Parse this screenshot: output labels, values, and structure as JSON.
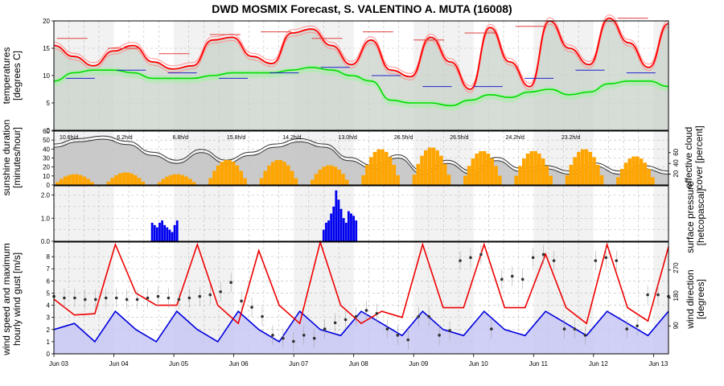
{
  "title": "DWD MOSMIX Forecast, S. VALENTINO A. MUTA (16008)",
  "x_ticks": [
    "Jun 03",
    "Jun 04",
    "Jun 05",
    "Jun 06",
    "Jun 07",
    "Jun 08",
    "Jun 09",
    "Jun 10",
    "Jun 11",
    "Jun 12",
    "Jun 13"
  ],
  "colors": {
    "temp": "#ff0000",
    "dew": "#00dd00",
    "sun": "#ffa500",
    "precip": "#0000ee",
    "gust": "#ee0000",
    "wind": "#0000dd",
    "cloud": "#999999"
  },
  "chart_data": [
    {
      "type": "line",
      "panel": "temperature",
      "ylabel": [
        "temperatures",
        "[degrees C]"
      ],
      "ylim": [
        0,
        20
      ],
      "yticks": [
        0,
        5,
        10,
        15,
        20
      ],
      "grid": true,
      "series": [
        {
          "key": "temperature",
          "values": [
            15.5,
            13.5,
            11.8,
            14.5,
            15.5,
            12.5,
            11.2,
            11.8,
            16.5,
            17.0,
            13.5,
            12.2,
            17.8,
            18.5,
            15.5,
            12.0,
            16.5,
            11.0,
            9.8,
            17.0,
            12.5,
            7.5,
            18.8,
            12.5,
            8.0,
            20.0,
            15.0,
            12.0,
            20.5,
            16.0,
            11.5,
            19.5
          ]
        },
        {
          "key": "dewpoint",
          "values": [
            9.0,
            10.5,
            11.0,
            11.0,
            10.5,
            9.5,
            9.5,
            9.5,
            10.0,
            10.5,
            10.5,
            10.5,
            11.0,
            11.5,
            11.0,
            10.0,
            9.0,
            5.5,
            5.0,
            5.0,
            4.5,
            5.5,
            6.5,
            6.0,
            7.0,
            7.5,
            6.5,
            7.0,
            8.5,
            9.0,
            9.0,
            8.0
          ]
        }
      ],
      "daily_max": [
        16.8,
        15.0,
        14.0,
        17.5,
        18.0,
        16.8,
        18.0,
        16.5,
        17.8,
        19.0,
        20.0,
        20.5
      ],
      "daily_mean": [
        9.5,
        11.0,
        10.5,
        9.5,
        10.5,
        11.5,
        10.0,
        8.0,
        8.0,
        9.5,
        11.0,
        10.5
      ]
    },
    {
      "type": "bar",
      "panel": "sunshine",
      "ylabel": [
        "sunshine duration",
        "[minutes/hour]"
      ],
      "ylim": [
        0,
        60
      ],
      "yticks": [
        0,
        10,
        20,
        30,
        40,
        50,
        60
      ],
      "daily_totals": [
        "10.6h/d",
        "6.2h/d",
        "6.8h/d",
        "15.8h/d",
        "14.2h/d",
        "13.0h/d",
        "26.5h/d",
        "26.5h/d",
        "24.2h/d",
        "23.2h/d"
      ],
      "daily_peak": [
        12,
        14,
        12,
        28,
        28,
        22,
        40,
        42,
        38,
        38,
        40,
        32
      ],
      "right_axis": {
        "label": [
          "effective cloud",
          "cover [percent]"
        ],
        "ticks": [
          20,
          40,
          60
        ]
      },
      "cloud_cover_percent": [
        70,
        80,
        85,
        75,
        55,
        40,
        60,
        40,
        55,
        70,
        80,
        70,
        45,
        30,
        50,
        20,
        40,
        20,
        45,
        25,
        30,
        20,
        35,
        20,
        30,
        20
      ]
    },
    {
      "type": "bar",
      "panel": "precipitation",
      "ylabel": [
        "surface pressure",
        "[hetcopascal]"
      ],
      "ylim": [
        0,
        2.4
      ],
      "yticks": [
        0.0,
        1.0,
        2.0
      ],
      "events": [
        {
          "day": "Jun 04",
          "values": [
            0.8,
            0.7,
            0.6,
            0.8,
            0.9,
            0.7,
            0.6,
            0.5,
            0.4,
            0.7,
            0.9
          ]
        },
        {
          "day": "Jun 07",
          "values": [
            0.5,
            0.8,
            0.9,
            1.2,
            1.5,
            2.2,
            1.8,
            1.4,
            1.0,
            0.8,
            1.3,
            1.2,
            1.1,
            0.9
          ]
        }
      ]
    },
    {
      "type": "line",
      "panel": "wind",
      "ylabel": [
        "wind speed and maximum",
        "hourly wind gust [m/s]"
      ],
      "ylim": [
        0,
        9.2
      ],
      "yticks": [
        0,
        1,
        2,
        3,
        4,
        5,
        6,
        7,
        8
      ],
      "right_axis": {
        "label": [
          "wind direction",
          "[degrees]"
        ],
        "ticks": [
          90,
          180,
          270
        ]
      },
      "series": [
        {
          "key": "gust",
          "values": [
            4.5,
            3.2,
            3.3,
            9.0,
            5.0,
            4.0,
            4.0,
            9.0,
            4.0,
            2.5,
            8.5,
            4.0,
            2.5,
            9.2,
            4.0,
            2.5,
            3.5,
            3.0,
            9.0,
            3.8,
            3.8,
            9.0,
            3.8,
            3.8,
            8.2,
            3.8,
            2.5,
            9.0,
            3.8,
            2.7,
            8.8
          ]
        },
        {
          "key": "wind",
          "values": [
            2.0,
            2.5,
            1.0,
            3.5,
            2.0,
            1.0,
            3.5,
            2.0,
            1.0,
            3.5,
            2.0,
            1.0,
            3.5,
            2.0,
            1.5,
            3.5,
            2.5,
            1.5,
            3.5,
            2.0,
            1.5,
            3.5,
            2.0,
            1.5,
            3.5,
            2.5,
            1.5,
            3.5,
            2.5,
            1.5,
            3.5
          ]
        }
      ],
      "wind_direction_degrees": [
        185,
        180,
        180,
        175,
        175,
        180,
        180,
        175,
        175,
        180,
        185,
        180,
        175,
        180,
        185,
        190,
        200,
        230,
        170,
        150,
        120,
        60,
        50,
        40,
        60,
        50,
        80,
        100,
        110,
        120,
        140,
        130,
        80,
        60,
        45,
        120,
        120,
        60,
        75,
        300,
        310,
        320,
        80,
        240,
        250,
        240,
        310,
        320,
        300,
        80,
        80,
        60,
        300,
        310,
        300,
        80,
        90,
        190,
        190,
        185
      ]
    }
  ]
}
